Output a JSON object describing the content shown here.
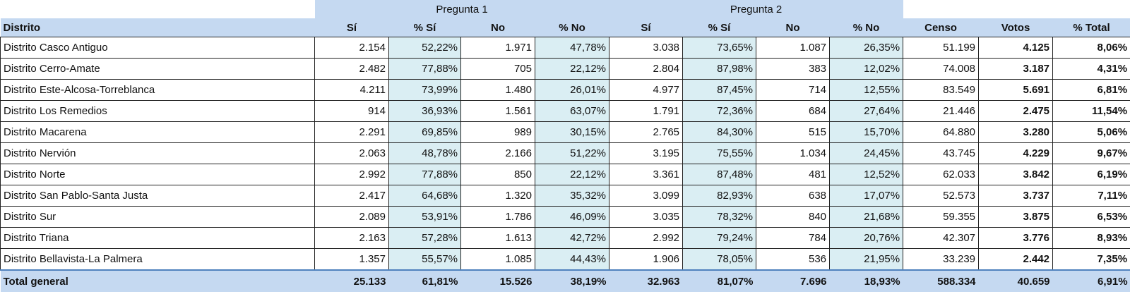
{
  "header": {
    "groups": [
      "Pregunta 1",
      "Pregunta 2"
    ],
    "columns": [
      "Distrito",
      "Sí",
      "% Sí",
      "No",
      "% No",
      "Sí",
      "% Sí",
      "No",
      "% No",
      "Censo",
      "Votos",
      "% Total"
    ]
  },
  "table": {
    "rows": [
      [
        "Distrito Casco Antiguo",
        "2.154",
        "52,22%",
        "1.971",
        "47,78%",
        "3.038",
        "73,65%",
        "1.087",
        "26,35%",
        "51.199",
        "4.125",
        "8,06%"
      ],
      [
        "Distrito Cerro-Amate",
        "2.482",
        "77,88%",
        "705",
        "22,12%",
        "2.804",
        "87,98%",
        "383",
        "12,02%",
        "74.008",
        "3.187",
        "4,31%"
      ],
      [
        "Distrito Este-Alcosa-Torreblanca",
        "4.211",
        "73,99%",
        "1.480",
        "26,01%",
        "4.977",
        "87,45%",
        "714",
        "12,55%",
        "83.549",
        "5.691",
        "6,81%"
      ],
      [
        "Distrito Los Remedios",
        "914",
        "36,93%",
        "1.561",
        "63,07%",
        "1.791",
        "72,36%",
        "684",
        "27,64%",
        "21.446",
        "2.475",
        "11,54%"
      ],
      [
        "Distrito Macarena",
        "2.291",
        "69,85%",
        "989",
        "30,15%",
        "2.765",
        "84,30%",
        "515",
        "15,70%",
        "64.880",
        "3.280",
        "5,06%"
      ],
      [
        "Distrito Nervión",
        "2.063",
        "48,78%",
        "2.166",
        "51,22%",
        "3.195",
        "75,55%",
        "1.034",
        "24,45%",
        "43.745",
        "4.229",
        "9,67%"
      ],
      [
        "Distrito Norte",
        "2.992",
        "77,88%",
        "850",
        "22,12%",
        "3.361",
        "87,48%",
        "481",
        "12,52%",
        "62.033",
        "3.842",
        "6,19%"
      ],
      [
        "Distrito San Pablo-Santa Justa",
        "2.417",
        "64,68%",
        "1.320",
        "35,32%",
        "3.099",
        "82,93%",
        "638",
        "17,07%",
        "52.573",
        "3.737",
        "7,11%"
      ],
      [
        "Distrito Sur",
        "2.089",
        "53,91%",
        "1.786",
        "46,09%",
        "3.035",
        "78,32%",
        "840",
        "21,68%",
        "59.355",
        "3.875",
        "6,53%"
      ],
      [
        "Distrito Triana",
        "2.163",
        "57,28%",
        "1.613",
        "42,72%",
        "2.992",
        "79,24%",
        "784",
        "20,76%",
        "42.307",
        "3.776",
        "8,93%"
      ],
      [
        "Distrito Bellavista-La Palmera",
        "1.357",
        "55,57%",
        "1.085",
        "44,43%",
        "1.906",
        "78,05%",
        "536",
        "21,95%",
        "33.239",
        "2.442",
        "7,35%"
      ]
    ],
    "total": [
      "Total general",
      "25.133",
      "61,81%",
      "15.526",
      "38,19%",
      "32.963",
      "81,07%",
      "7.696",
      "18,93%",
      "588.334",
      "40.659",
      "6,91%"
    ]
  }
}
